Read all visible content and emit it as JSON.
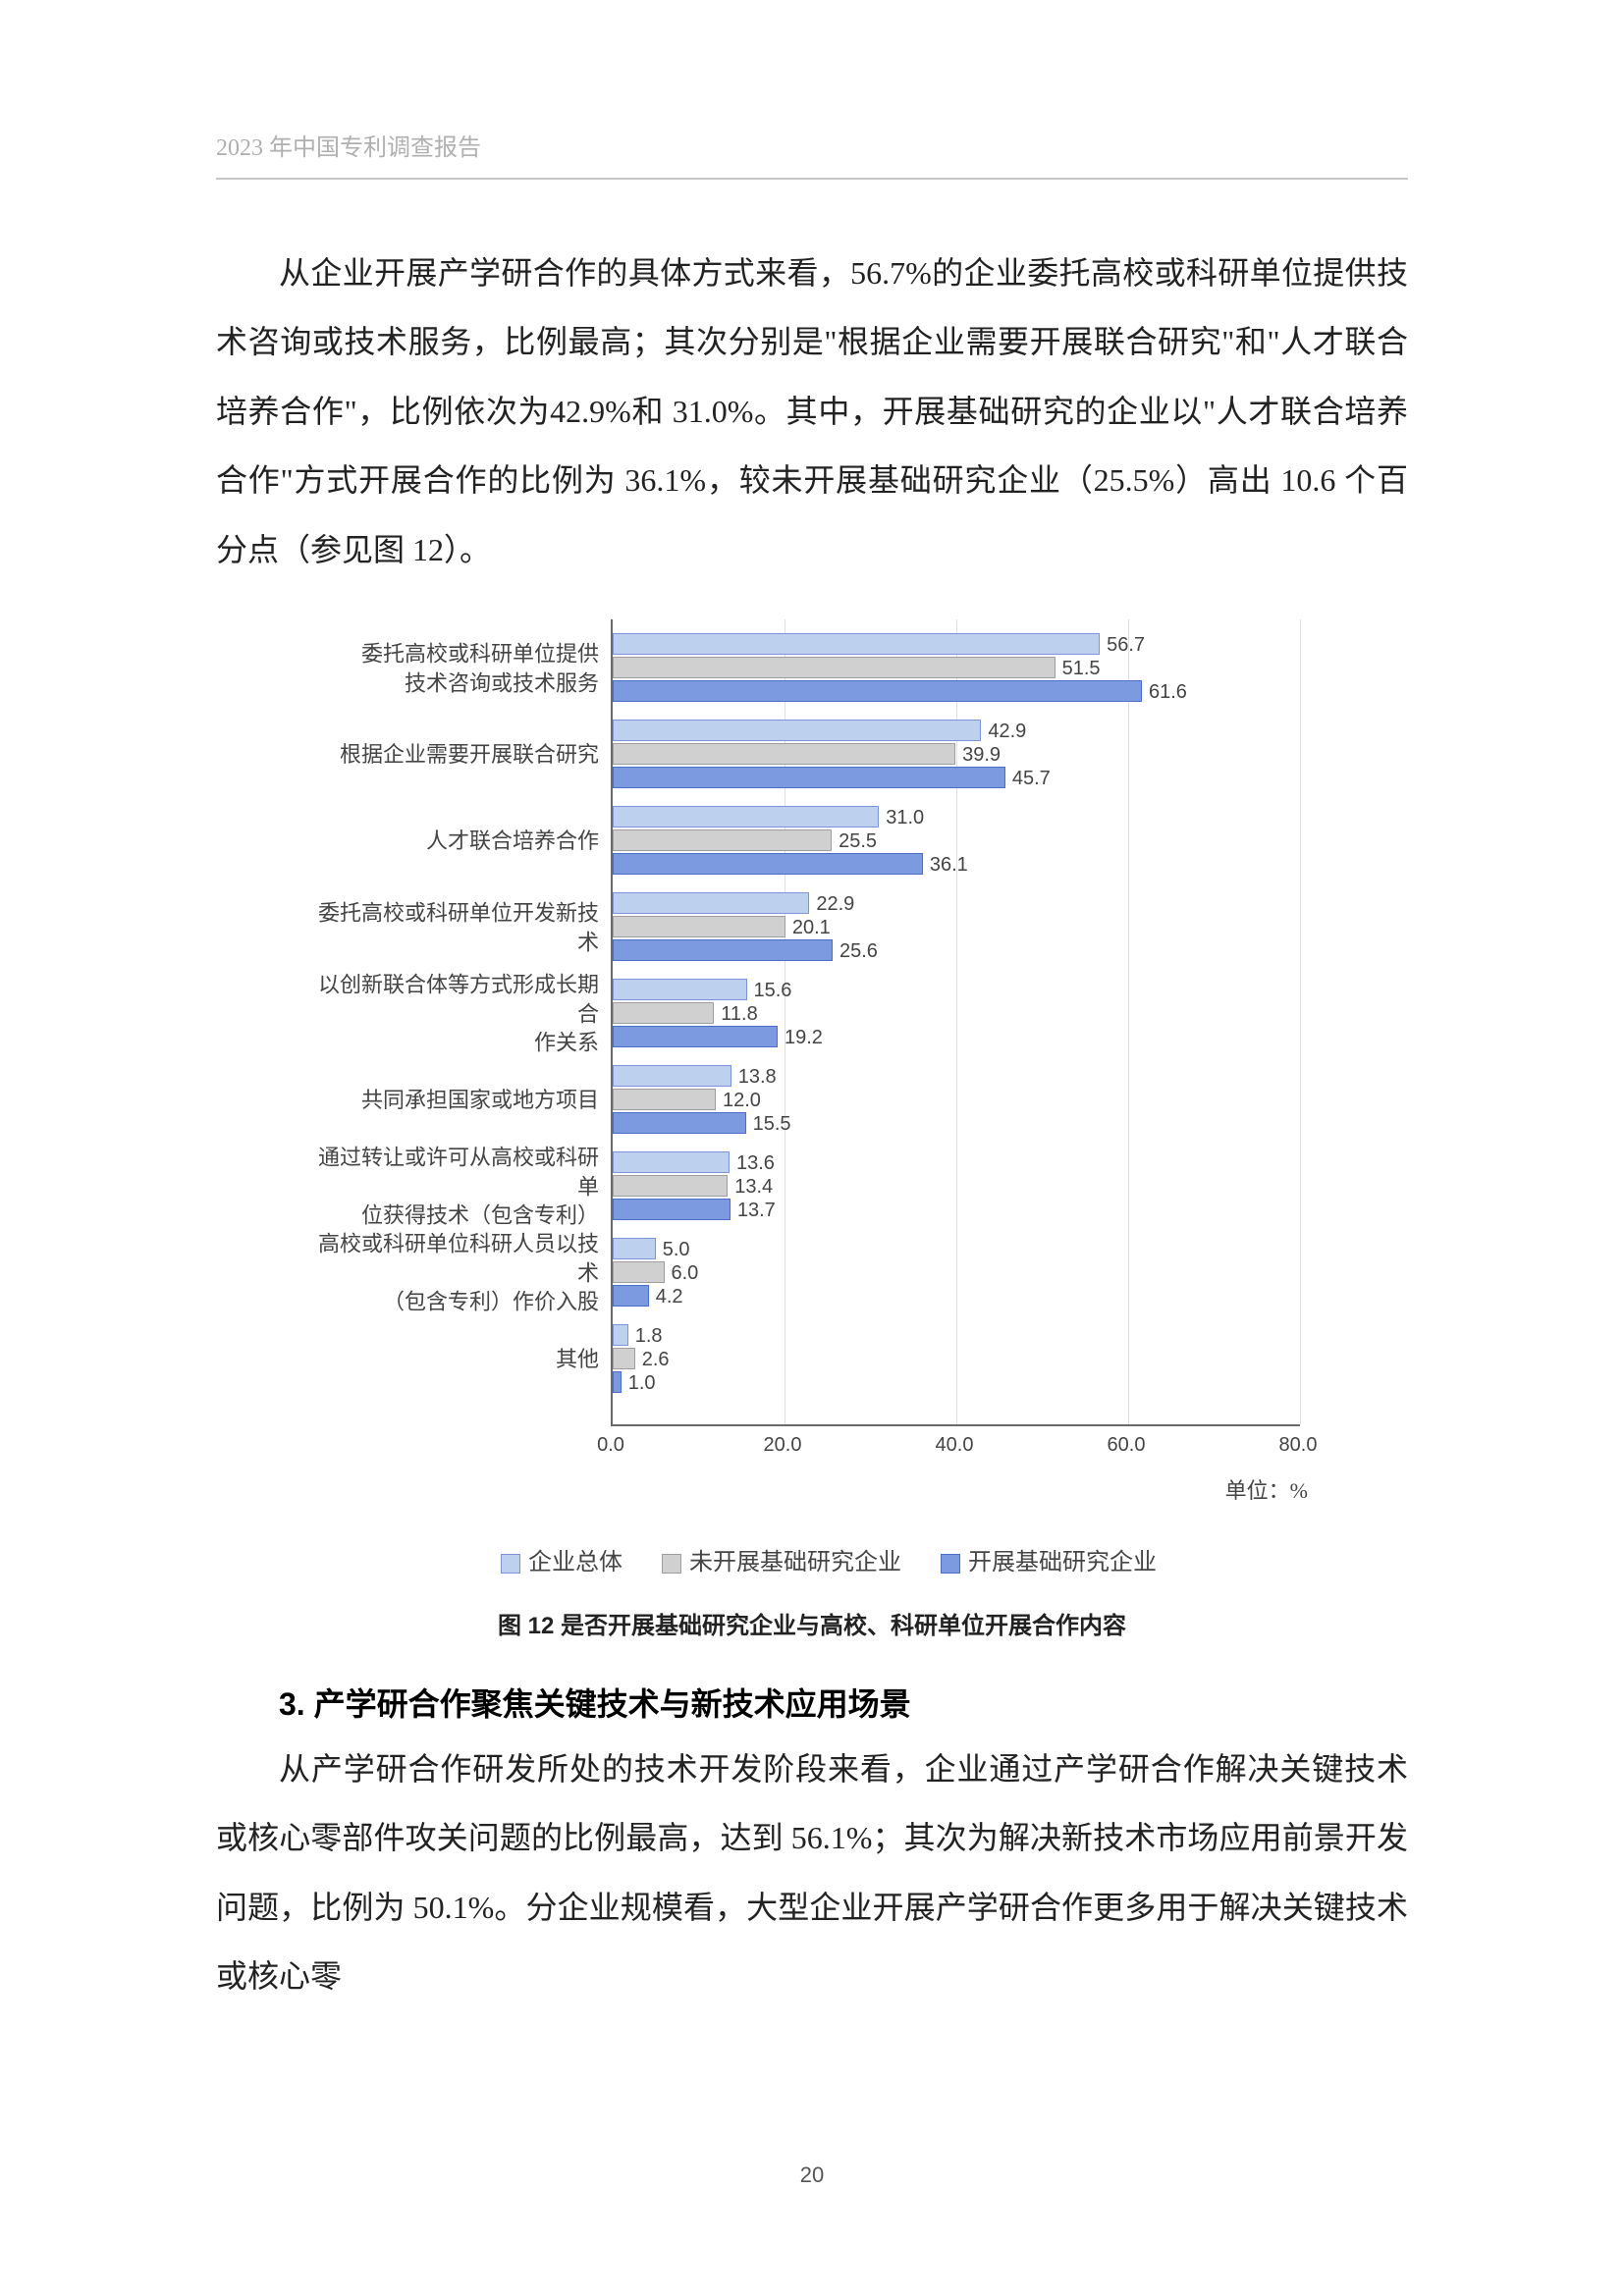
{
  "header": "2023 年中国专利调查报告",
  "para1": "从企业开展产学研合作的具体方式来看，56.7%的企业委托高校或科研单位提供技术咨询或技术服务，比例最高；其次分别是\"根据企业需要开展联合研究\"和\"人才联合培养合作\"，比例依次为42.9%和 31.0%。其中，开展基础研究的企业以\"人才联合培养合作\"方式开展合作的比例为 36.1%，较未开展基础研究企业（25.5%）高出 10.6 个百分点（参见图 12）。",
  "chart": {
    "type": "bar",
    "xlim": [
      0,
      80
    ],
    "xtick_step": 20,
    "xticks": [
      "0.0",
      "20.0",
      "40.0",
      "60.0",
      "80.0"
    ],
    "unit": "单位：%",
    "series_colors": {
      "a": "#bdd0ee",
      "b": "#d0d0d0",
      "c": "#7c9ae0"
    },
    "categories": [
      {
        "label": "委托高校或科研单位提供\n技术咨询或技术服务",
        "a": 56.7,
        "b": 51.5,
        "c": 61.6
      },
      {
        "label": "根据企业需要开展联合研究",
        "a": 42.9,
        "b": 39.9,
        "c": 45.7
      },
      {
        "label": "人才联合培养合作",
        "a": 31.0,
        "b": 25.5,
        "c": 36.1
      },
      {
        "label": "委托高校或科研单位开发新技术",
        "a": 22.9,
        "b": 20.1,
        "c": 25.6
      },
      {
        "label": "以创新联合体等方式形成长期合\n作关系",
        "a": 15.6,
        "b": 11.8,
        "c": 19.2
      },
      {
        "label": "共同承担国家或地方项目",
        "a": 13.8,
        "b": 12.0,
        "c": 15.5
      },
      {
        "label": "通过转让或许可从高校或科研单\n位获得技术（包含专利）",
        "a": 13.6,
        "b": 13.4,
        "c": 13.7
      },
      {
        "label": "高校或科研单位科研人员以技术\n（包含专利）作价入股",
        "a": 5.0,
        "b": 6.0,
        "c": 4.2
      },
      {
        "label": "其他",
        "a": 1.8,
        "b": 2.6,
        "c": 1.0
      }
    ],
    "legend": {
      "a": "企业总体",
      "b": "未开展基础研究企业",
      "c": "开展基础研究企业"
    },
    "caption": "图 12  是否开展基础研究企业与高校、科研单位开展合作内容"
  },
  "heading": "3. 产学研合作聚焦关键技术与新技术应用场景",
  "para2": "从产学研合作研发所处的技术开发阶段来看，企业通过产学研合作解决关键技术或核心零部件攻关问题的比例最高，达到 56.1%；其次为解决新技术市场应用前景开发问题，比例为 50.1%。分企业规模看，大型企业开展产学研合作更多用于解决关键技术或核心零",
  "pagenum": "20"
}
